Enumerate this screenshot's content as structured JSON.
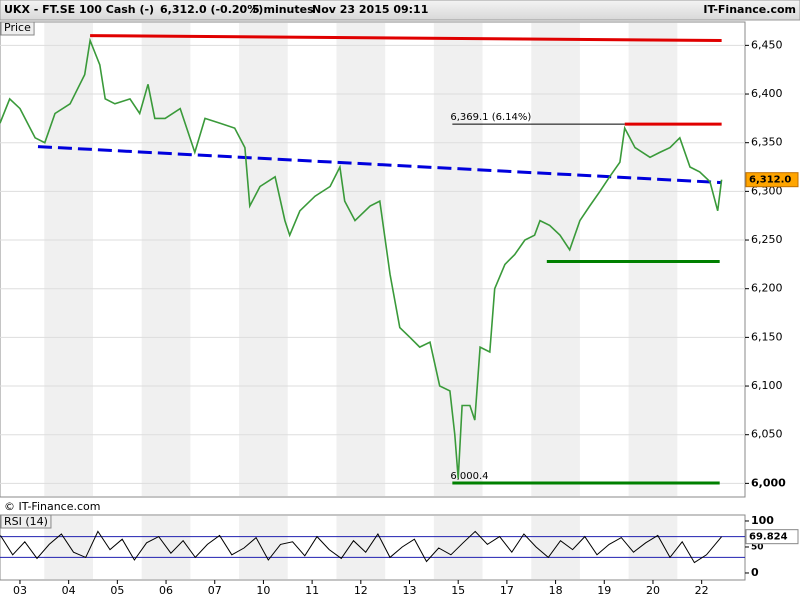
{
  "header": {
    "symbol": "UKX - FT.SE 100 Cash (-)",
    "quote": "6,312.0 (-0.20%)",
    "interval": "5 minutes",
    "timestamp": "Nov 23 2015 09:11",
    "brand": "IT-Finance.com"
  },
  "chart_data": [
    {
      "type": "line",
      "panel_label": "Price",
      "copyright": "© IT-Finance.com",
      "color": "#3a9a3a",
      "x": [
        -0.41,
        -0.21,
        0,
        0.31,
        0.51,
        0.72,
        1.03,
        1.33,
        1.44,
        1.64,
        1.75,
        1.95,
        2.26,
        2.46,
        2.63,
        2.77,
        2.98,
        3.29,
        3.59,
        3.8,
        4.11,
        4.41,
        4.62,
        4.72,
        4.93,
        5.24,
        5.44,
        5.54,
        5.75,
        6.06,
        6.37,
        6.57,
        6.67,
        6.88,
        7.19,
        7.39,
        7.6,
        7.8,
        8.01,
        8.21,
        8.42,
        8.62,
        8.83,
        8.93,
        9,
        9.08,
        9.24,
        9.34,
        9.45,
        9.65,
        9.75,
        9.96,
        10.16,
        10.37,
        10.57,
        10.68,
        10.88,
        11.09,
        11.29,
        11.5,
        11.7,
        11.91,
        12.11,
        12.32,
        12.42,
        12.63,
        12.94,
        13.14,
        13.35,
        13.55,
        13.76,
        13.96,
        14.17,
        14.33,
        14.41
      ],
      "values": [
        6370,
        6395,
        6385,
        6355,
        6350,
        6380,
        6390,
        6420,
        6455,
        6430,
        6395,
        6390,
        6395,
        6380,
        6410,
        6375,
        6375,
        6385,
        6340,
        6375,
        6370,
        6365,
        6345,
        6285,
        6305,
        6315,
        6270,
        6255,
        6280,
        6295,
        6305,
        6325,
        6290,
        6270,
        6285,
        6290,
        6215,
        6160,
        6150,
        6140,
        6145,
        6100,
        6095,
        6050,
        6005,
        6080,
        6080,
        6065,
        6140,
        6135,
        6200,
        6225,
        6235,
        6250,
        6255,
        6270,
        6265,
        6255,
        6240,
        6270,
        6285,
        6300,
        6315,
        6330,
        6365,
        6345,
        6335,
        6340,
        6345,
        6355,
        6325,
        6320,
        6310,
        6280,
        6312
      ],
      "last_label": {
        "value": 6312,
        "label": "6,312.0"
      },
      "xlim": [
        -0.41,
        14.89
      ],
      "ylim": [
        5986,
        6474
      ],
      "xticks": [
        {
          "value": 0,
          "label": "03"
        },
        {
          "value": 1,
          "label": "04"
        },
        {
          "value": 2,
          "label": "05"
        },
        {
          "value": 3,
          "label": "06"
        },
        {
          "value": 4,
          "label": "07"
        },
        {
          "value": 5,
          "label": "10"
        },
        {
          "value": 6,
          "label": "11"
        },
        {
          "value": 7,
          "label": "12"
        },
        {
          "value": 8,
          "label": "13"
        },
        {
          "value": 9,
          "label": "15"
        },
        {
          "value": 10,
          "label": "17"
        },
        {
          "value": 11,
          "label": "18"
        },
        {
          "value": 12,
          "label": "19"
        },
        {
          "value": 13,
          "label": "20"
        },
        {
          "value": 14,
          "label": "22"
        }
      ],
      "yticks": [
        {
          "value": 6000,
          "label": "6,000"
        },
        {
          "value": 6050,
          "label": "6,050"
        },
        {
          "value": 6100,
          "label": "6,100"
        },
        {
          "value": 6150,
          "label": "6,150"
        },
        {
          "value": 6200,
          "label": "6,200"
        },
        {
          "value": 6250,
          "label": "6,250"
        },
        {
          "value": 6300,
          "label": "6,300"
        },
        {
          "value": 6350,
          "label": "6,350"
        },
        {
          "value": 6400,
          "label": "6,400"
        },
        {
          "value": 6450,
          "label": "6,450"
        }
      ],
      "grid": true,
      "trendlines": [
        {
          "x": [
            1.44,
            14.41
          ],
          "y": [
            6460,
            6455
          ],
          "color": "#e00000",
          "dash": false
        },
        {
          "x": [
            12.42,
            14.41
          ],
          "y": [
            6369.1,
            6369.1
          ],
          "color": "#e00000",
          "dash": false
        },
        {
          "x": [
            0.37,
            14.41
          ],
          "y": [
            6346,
            6309
          ],
          "color": "#0000dd",
          "dash": true
        },
        {
          "x": [
            10.82,
            14.37
          ],
          "y": [
            6228,
            6228
          ],
          "color": "#008000",
          "dash": false
        },
        {
          "x": [
            8.88,
            14.37
          ],
          "y": [
            6000.4,
            6000.4
          ],
          "color": "#008000",
          "dash": false
        }
      ],
      "annotations": [
        {
          "label": "6,369.1 (6.14%)",
          "value": 6369.1,
          "x": [
            8.88,
            12.42
          ]
        },
        {
          "label": "6,000.4",
          "value": 6000.4,
          "x": [
            8.88,
            8.88
          ]
        }
      ]
    },
    {
      "type": "line",
      "panel_label": "RSI (14)",
      "color": "#000000",
      "x": [
        -0.4,
        -0.15,
        0.1,
        0.35,
        0.6,
        0.85,
        1.1,
        1.35,
        1.6,
        1.85,
        2.1,
        2.35,
        2.6,
        2.85,
        3.1,
        3.35,
        3.6,
        3.85,
        4.1,
        4.35,
        4.6,
        4.85,
        5.1,
        5.35,
        5.6,
        5.85,
        6.1,
        6.35,
        6.6,
        6.85,
        7.1,
        7.35,
        7.6,
        7.85,
        8.1,
        8.35,
        8.6,
        8.85,
        9.1,
        9.35,
        9.6,
        9.85,
        10.1,
        10.35,
        10.6,
        10.85,
        11.1,
        11.35,
        11.6,
        11.85,
        12.1,
        12.35,
        12.6,
        12.85,
        13.1,
        13.35,
        13.6,
        13.85,
        14.1,
        14.41
      ],
      "values": [
        72,
        35,
        60,
        28,
        55,
        75,
        40,
        30,
        80,
        45,
        65,
        25,
        58,
        70,
        38,
        62,
        30,
        55,
        72,
        35,
        48,
        68,
        25,
        55,
        60,
        33,
        70,
        45,
        28,
        62,
        40,
        75,
        30,
        50,
        65,
        22,
        48,
        35,
        58,
        80,
        55,
        70,
        40,
        75,
        50,
        30,
        62,
        45,
        70,
        35,
        55,
        68,
        40,
        58,
        72,
        30,
        60,
        20,
        35,
        69.824
      ],
      "xlim": [
        -0.41,
        14.89
      ],
      "ylim": [
        -13.5,
        111.5
      ],
      "yticks": [
        0,
        50,
        100
      ],
      "reference_lines": [
        30,
        70
      ],
      "reference_color": "#2020b0"
    }
  ]
}
